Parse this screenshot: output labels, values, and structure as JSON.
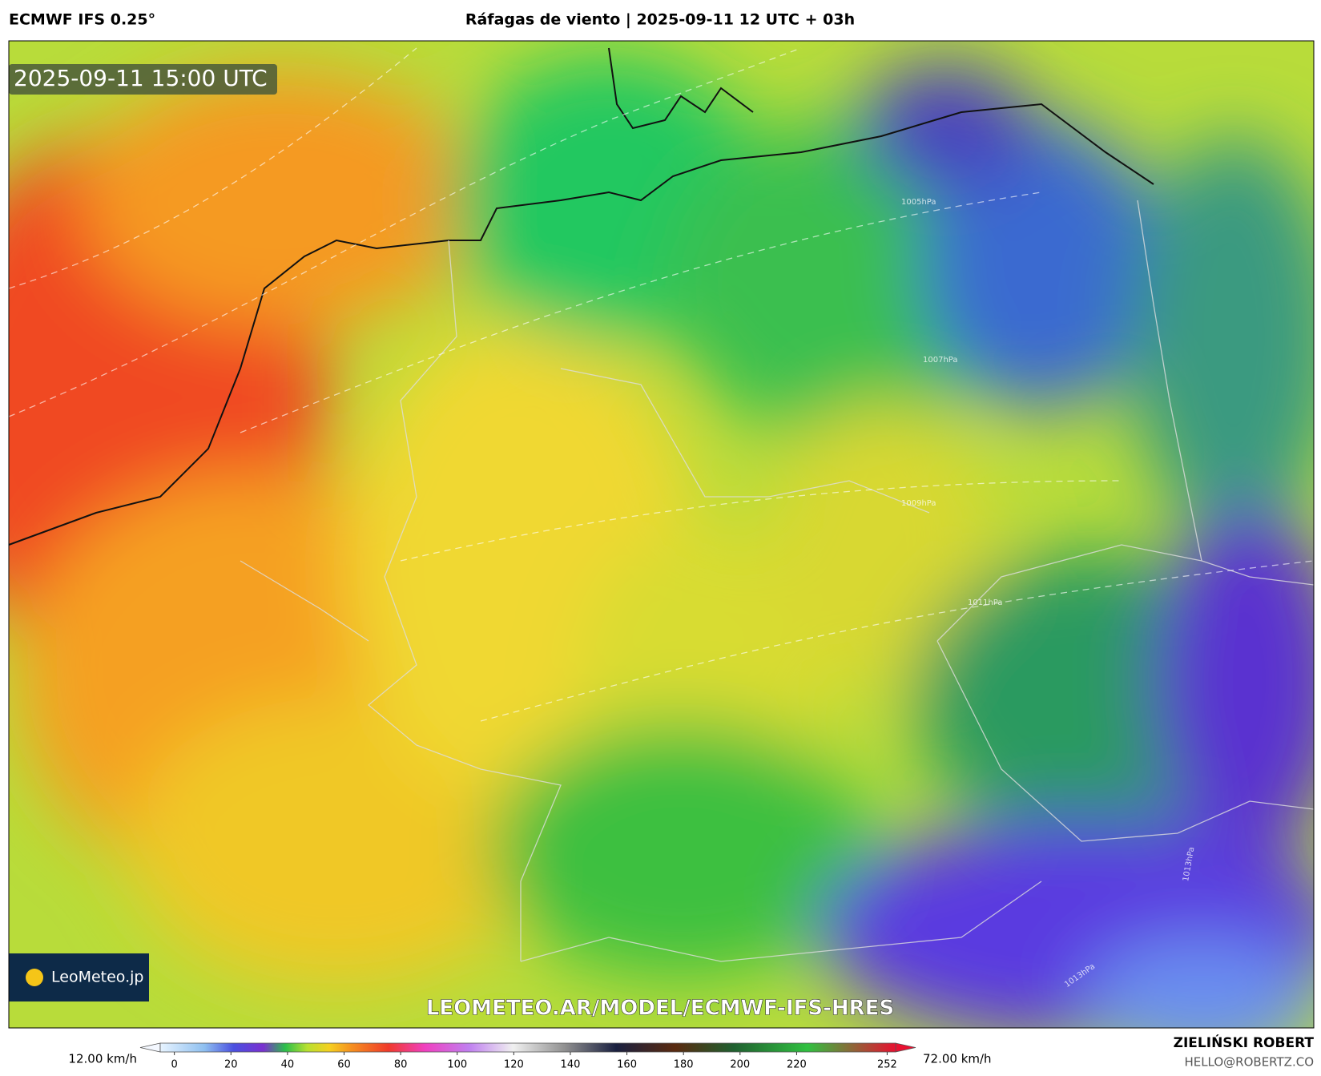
{
  "header": {
    "model": "ECMWF IFS 0.25°",
    "title": "Ráfagas de viento | 2025-09-11 12 UTC + 03h"
  },
  "map": {
    "timestamp": "2025-09-11 15:00 UTC",
    "watermark": "LEOMETEO.AR/MODEL/ECMWF-IFS-HRES",
    "logo": "LeoMeteo.jp",
    "isobars": [
      "1005hPa",
      "1007hPa",
      "1009hPa",
      "1011hPa",
      "1013hPa",
      "1013hPa"
    ]
  },
  "colorbar": {
    "min_label": "12.00 km/h",
    "max_label": "72.00 km/h",
    "lim": [
      -5,
      255
    ],
    "ticks": [
      0,
      20,
      40,
      60,
      80,
      100,
      120,
      140,
      160,
      180,
      200,
      220,
      252
    ]
  },
  "credit": {
    "name": "ZIELIŃSKI ROBERT",
    "email": "HELLO@ROBERTZ.CO"
  }
}
